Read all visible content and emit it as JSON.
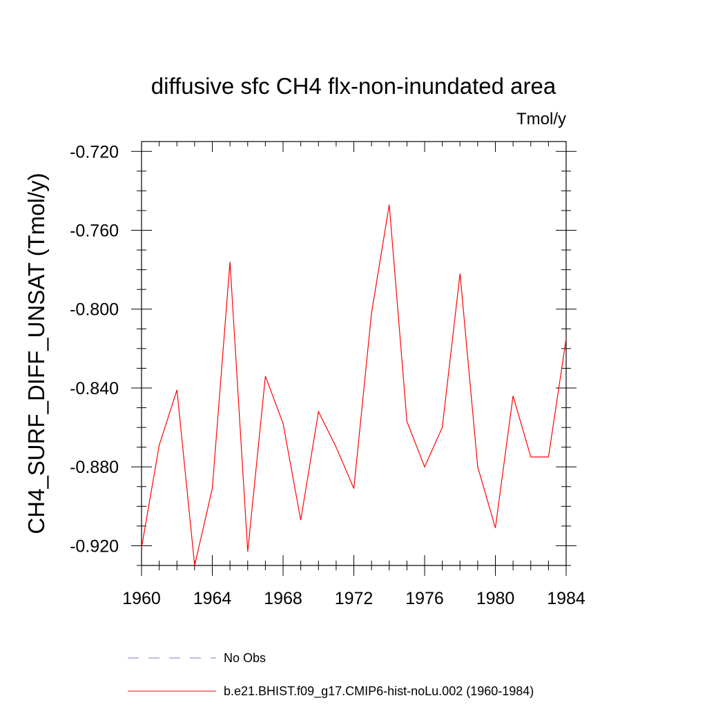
{
  "chart_data": {
    "type": "line",
    "title": "diffusive sfc CH4 flx-non-inundated area",
    "units": "Tmol/y",
    "xlabel": "",
    "ylabel": "CH4_SURF_DIFF_UNSAT  (Tmol/y)",
    "xlim": [
      1960,
      1984
    ],
    "ylim": [
      -0.93,
      -0.715
    ],
    "xticks": [
      1960,
      1964,
      1968,
      1972,
      1976,
      1980,
      1984
    ],
    "xtick_labels": [
      "1960",
      "1964",
      "1968",
      "1972",
      "1976",
      "1980",
      "1984"
    ],
    "yticks": [
      -0.72,
      -0.76,
      -0.8,
      -0.84,
      -0.88,
      -0.92
    ],
    "ytick_labels": [
      "-0.720",
      "-0.760",
      "-0.800",
      "-0.840",
      "-0.880",
      "-0.920"
    ],
    "grid": false,
    "legend_position": "bottom",
    "x": [
      1960,
      1961,
      1962,
      1963,
      1964,
      1965,
      1966,
      1967,
      1968,
      1969,
      1970,
      1971,
      1972,
      1973,
      1974,
      1975,
      1976,
      1977,
      1978,
      1979,
      1980,
      1981,
      1982,
      1983,
      1984
    ],
    "series": [
      {
        "name": "b.e21.BHIST.f09_g17.CMIP6-hist-noLu.002 (1960-1984)",
        "color": "#ff0000",
        "style": "solid",
        "values": [
          -0.921,
          -0.869,
          -0.841,
          -0.93,
          -0.891,
          -0.776,
          -0.923,
          -0.834,
          -0.858,
          -0.907,
          -0.852,
          -0.87,
          -0.891,
          -0.802,
          -0.747,
          -0.857,
          -0.88,
          -0.86,
          -0.782,
          -0.88,
          -0.911,
          -0.844,
          -0.875,
          -0.875,
          -0.815
        ]
      }
    ],
    "legend": [
      {
        "label": "No Obs",
        "color": "#7b7bd0",
        "style": "dashed"
      },
      {
        "label": "b.e21.BHIST.f09_g17.CMIP6-hist-noLu.002 (1960-1984)",
        "color": "#ff0000",
        "style": "solid"
      }
    ]
  }
}
